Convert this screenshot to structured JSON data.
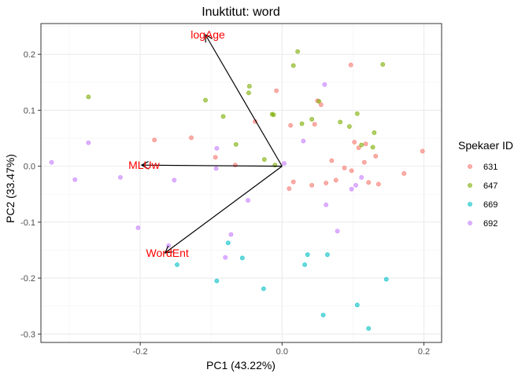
{
  "chart_data": {
    "type": "scatter",
    "title": "Inuktitut: word",
    "xlabel": "PC1 (43.22%)",
    "ylabel": "PC2 (33.47%)",
    "xlim": [
      -0.34,
      0.225
    ],
    "ylim": [
      -0.315,
      0.255
    ],
    "x_ticks": [
      -0.2,
      0.0,
      0.2
    ],
    "x_tick_labels": [
      "-0.2",
      "0.0",
      "0.2"
    ],
    "y_ticks": [
      -0.3,
      -0.2,
      -0.1,
      0.0,
      0.1,
      0.2
    ],
    "y_tick_labels": [
      "-0.3",
      "-0.2",
      "-0.1",
      "0.0",
      "0.1",
      "0.2"
    ],
    "grid": true,
    "legend": {
      "title": "Spekaer ID",
      "position": "right"
    },
    "arrow_color": "#000000",
    "arrow_label_color": "#ff0000",
    "arrows": [
      {
        "label": "logAge",
        "x": -0.108,
        "y": 0.235
      },
      {
        "label": "MLUw",
        "x": -0.198,
        "y": 0.002
      },
      {
        "label": "WordEnt",
        "x": -0.165,
        "y": -0.155
      }
    ],
    "series": [
      {
        "name": "631",
        "color": "#F8766D",
        "points": [
          [
            -0.18,
            0.047
          ],
          [
            -0.128,
            0.051
          ],
          [
            -0.094,
            0.016
          ],
          [
            -0.066,
            0.002
          ],
          [
            -0.038,
            0.08
          ],
          [
            -0.008,
            0.135
          ],
          [
            0.012,
            0.073
          ],
          [
            0.01,
            -0.04
          ],
          [
            0.016,
            -0.028
          ],
          [
            0.05,
            0.117
          ],
          [
            0.055,
            0.11
          ],
          [
            0.046,
            0.075
          ],
          [
            0.097,
            0.181
          ],
          [
            0.07,
            0.01
          ],
          [
            0.088,
            -0.003
          ],
          [
            0.102,
            0.043
          ],
          [
            0.108,
            0.033
          ],
          [
            0.118,
            0.04
          ],
          [
            0.132,
            0.018
          ],
          [
            0.136,
            -0.032
          ],
          [
            0.172,
            -0.013
          ],
          [
            0.198,
            0.027
          ],
          [
            0.042,
            -0.034
          ],
          [
            0.062,
            -0.03
          ],
          [
            0.076,
            -0.025
          ],
          [
            0.098,
            -0.008
          ],
          [
            0.122,
            -0.029
          ],
          [
            0.116,
            0.007
          ]
        ]
      },
      {
        "name": "647",
        "color": "#7CAE00",
        "points": [
          [
            -0.273,
            0.124
          ],
          [
            -0.108,
            0.118
          ],
          [
            -0.083,
            0.089
          ],
          [
            -0.065,
            0.039
          ],
          [
            -0.046,
            0.143
          ],
          [
            -0.047,
            0.131
          ],
          [
            -0.014,
            0.093
          ],
          [
            -0.012,
            0.092
          ],
          [
            0.016,
            0.18
          ],
          [
            0.022,
            0.205
          ],
          [
            -0.025,
            0.012
          ],
          [
            0.028,
            0.076
          ],
          [
            0.042,
            0.084
          ],
          [
            0.082,
            0.079
          ],
          [
            0.095,
            0.071
          ],
          [
            0.106,
            0.094
          ],
          [
            0.112,
            0.038
          ],
          [
            0.128,
            0.034
          ],
          [
            0.13,
            0.06
          ],
          [
            0.142,
            0.182
          ],
          [
            -0.01,
            0.002
          ],
          [
            0.052,
            0.116
          ]
        ]
      },
      {
        "name": "669",
        "color": "#00BFC4",
        "points": [
          [
            -0.148,
            -0.176
          ],
          [
            -0.092,
            -0.205
          ],
          [
            -0.076,
            -0.137
          ],
          [
            -0.056,
            -0.164
          ],
          [
            -0.026,
            -0.219
          ],
          [
            0.032,
            -0.176
          ],
          [
            0.036,
            -0.158
          ],
          [
            0.064,
            -0.158
          ],
          [
            0.058,
            -0.266
          ],
          [
            0.106,
            -0.248
          ],
          [
            0.122,
            -0.29
          ],
          [
            0.147,
            -0.202
          ]
        ]
      },
      {
        "name": "692",
        "color": "#C77CFF",
        "points": [
          [
            -0.325,
            0.007
          ],
          [
            -0.292,
            -0.024
          ],
          [
            -0.273,
            0.042
          ],
          [
            -0.228,
            -0.02
          ],
          [
            -0.203,
            -0.11
          ],
          [
            -0.16,
            -0.142
          ],
          [
            -0.152,
            -0.025
          ],
          [
            -0.092,
            0.032
          ],
          [
            -0.093,
            -0.004
          ],
          [
            -0.08,
            -0.163
          ],
          [
            -0.072,
            -0.122
          ],
          [
            -0.048,
            -0.061
          ],
          [
            0.003,
            0.005
          ],
          [
            0.03,
            0.045
          ],
          [
            0.06,
            0.146
          ],
          [
            0.062,
            -0.069
          ],
          [
            0.078,
            -0.116
          ],
          [
            0.098,
            -0.041
          ],
          [
            0.104,
            -0.034
          ],
          [
            0.112,
            -0.02
          ]
        ]
      }
    ]
  }
}
